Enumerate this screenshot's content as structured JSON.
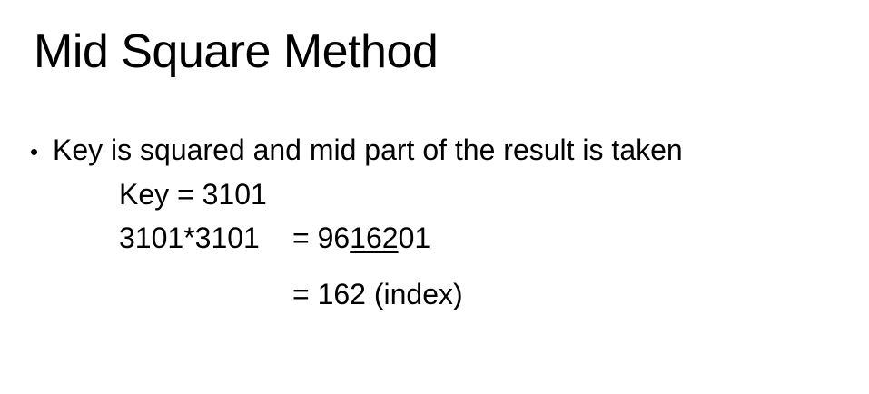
{
  "slide": {
    "title": "Mid Square Method",
    "bullet_symbol": "•",
    "bullet_text": "Key is squared and mid part of the result is taken",
    "key_line": "Key = 3101",
    "calc_lhs": "3101*3101",
    "calc_rhs_prefix": "= 96",
    "calc_rhs_mid": "162",
    "calc_rhs_suffix": "01",
    "result_line": "= 162 (index)"
  }
}
